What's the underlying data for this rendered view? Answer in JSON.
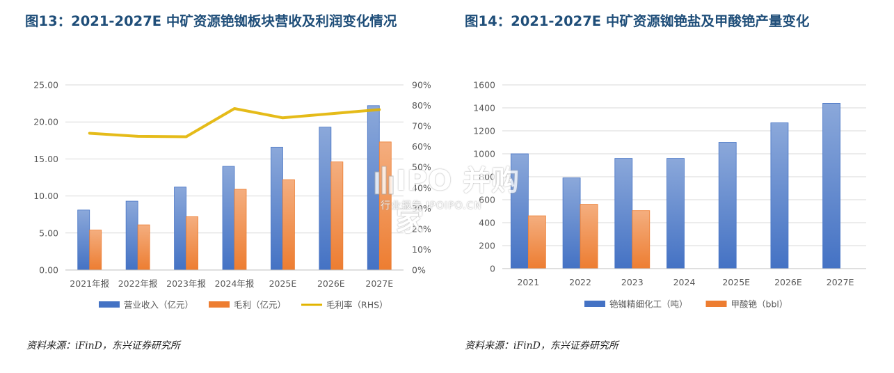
{
  "left": {
    "title": "图13：2021-2027E 中矿资源铯铷板块营收及利润变化情况",
    "source": "资料来源：iFinD，东兴证券研究所"
  },
  "right": {
    "title": "图14：2021-2027E 中矿资源铷铯盐及甲酸铯产量变化",
    "source": "资料来源：iFinD，东兴证券研究所"
  },
  "watermark": {
    "main": "IPO 并购家",
    "sub": "行业报告 IPOIPO.CN"
  },
  "colors": {
    "blue": "#4472c4",
    "orange": "#ed7d31",
    "gold": "#e2b400",
    "grid": "#d9d9d9",
    "title": "#1f4e79"
  },
  "chart_data": [
    {
      "type": "bar",
      "categories": [
        "2021年报",
        "2022年报",
        "2023年报",
        "2024年报",
        "2025E",
        "2026E",
        "2027E"
      ],
      "series": [
        {
          "name": "营业收入（亿元）",
          "values": [
            8.1,
            9.3,
            11.2,
            14.0,
            16.6,
            19.3,
            22.2
          ],
          "color": "#4472c4",
          "axis": "left"
        },
        {
          "name": "毛利（亿元）",
          "values": [
            5.4,
            6.1,
            7.2,
            10.9,
            12.2,
            14.6,
            17.3
          ],
          "color": "#ed7d31",
          "axis": "left"
        },
        {
          "name": "毛利率（RHS）",
          "type": "line",
          "values": [
            66.5,
            65.0,
            64.8,
            78.5,
            74.0,
            76.0,
            78.0
          ],
          "color": "#e2b400",
          "axis": "right"
        }
      ],
      "ylim": [
        0,
        25
      ],
      "yticks": [
        "0.00",
        "5.00",
        "10.00",
        "15.00",
        "20.00",
        "25.00"
      ],
      "y2lim": [
        0,
        90
      ],
      "y2ticks": [
        "0%",
        "10%",
        "20%",
        "30%",
        "40%",
        "50%",
        "60%",
        "70%",
        "80%",
        "90%"
      ],
      "grid": true,
      "legend": "bottom"
    },
    {
      "type": "bar",
      "categories": [
        "2021",
        "2022",
        "2023",
        "2024",
        "2025E",
        "2026E",
        "2027E"
      ],
      "series": [
        {
          "name": "铯铷精细化工（吨）",
          "values": [
            1000,
            790,
            960,
            960,
            1100,
            1270,
            1440
          ],
          "color": "#4472c4"
        },
        {
          "name": "甲酸铯（bbl）",
          "values": [
            460,
            560,
            505,
            null,
            null,
            null,
            null
          ],
          "color": "#ed7d31"
        }
      ],
      "ylim": [
        0,
        1600
      ],
      "yticks": [
        "0",
        "200",
        "400",
        "600",
        "800",
        "1000",
        "1200",
        "1400",
        "1600"
      ],
      "grid": true,
      "legend": "bottom"
    }
  ]
}
